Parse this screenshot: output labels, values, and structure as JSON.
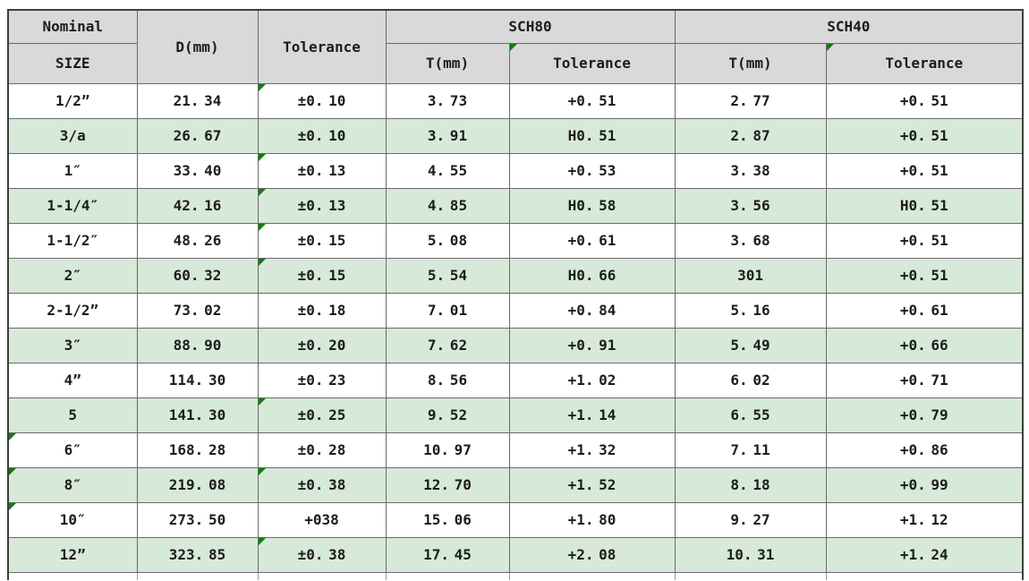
{
  "colors": {
    "header_bg": "#d9d9d9",
    "shaded_row_bg": "#d7e9d8",
    "grid_line": "#6a6a6a",
    "outer_border": "#3e3e3e",
    "flag_green": "#0f7d10"
  },
  "table": {
    "header": {
      "nominal": "Nominal",
      "size": "SIZE",
      "d_mm": "D(mm)",
      "d_tolerance": "Tolerance",
      "sch80": "SCH80",
      "sch40": "SCH40",
      "sch80_t": "T(mm)",
      "sch80_tolerance": "Tolerance",
      "sch40_t": "T(mm)",
      "sch40_tolerance": "Tolerance"
    },
    "columns": [
      "Nominal SIZE",
      "D(mm)",
      "Tolerance",
      "SCH80 T(mm)",
      "SCH80 Tolerance",
      "SCH40 T(mm)",
      "SCH40 Tolerance"
    ],
    "rows": [
      {
        "size": "1/2”",
        "d": "21.34",
        "d_tol": "±0.10",
        "sch80_t": "3.73",
        "sch80_tol": "+0.51",
        "sch40_t": "2.77",
        "sch40_tol": "+0.51",
        "shaded": false,
        "markers": [
          "d_tol"
        ]
      },
      {
        "size": "3/a",
        "d": "26.67",
        "d_tol": "±0.10",
        "sch80_t": "3.91",
        "sch80_tol": "H0.51",
        "sch40_t": "2.87",
        "sch40_tol": "+0.51",
        "shaded": true,
        "markers": []
      },
      {
        "size": "1″",
        "d": "33.40",
        "d_tol": "±0.13",
        "sch80_t": "4.55",
        "sch80_tol": "+0.53",
        "sch40_t": "3.38",
        "sch40_tol": "+0.51",
        "shaded": false,
        "markers": [
          "d_tol"
        ]
      },
      {
        "size": "1-1/4″",
        "d": "42.16",
        "d_tol": "±0.13",
        "sch80_t": "4.85",
        "sch80_tol": "H0.58",
        "sch40_t": "3.56",
        "sch40_tol": "H0.51",
        "shaded": true,
        "markers": [
          "d_tol"
        ]
      },
      {
        "size": "1-1/2″",
        "d": "48.26",
        "d_tol": "±0.15",
        "sch80_t": "5.08",
        "sch80_tol": "+0.61",
        "sch40_t": "3.68",
        "sch40_tol": "+0.51",
        "shaded": false,
        "markers": [
          "d_tol"
        ]
      },
      {
        "size": "2″",
        "d": "60.32",
        "d_tol": "±0.15",
        "sch80_t": "5.54",
        "sch80_tol": "H0.66",
        "sch40_t": "301",
        "sch40_tol": "+0.51",
        "shaded": true,
        "markers": [
          "d_tol"
        ]
      },
      {
        "size": "2-1/2”",
        "d": "73.02",
        "d_tol": "±0.18",
        "sch80_t": "7.01",
        "sch80_tol": "+0.84",
        "sch40_t": "5.16",
        "sch40_tol": "+0.61",
        "shaded": false,
        "markers": []
      },
      {
        "size": "3″",
        "d": "88.90",
        "d_tol": "±0.20",
        "sch80_t": "7.62",
        "sch80_tol": "+0.91",
        "sch40_t": "5.49",
        "sch40_tol": "+0.66",
        "shaded": true,
        "markers": []
      },
      {
        "size": "4”",
        "d": "114.30",
        "d_tol": "±0.23",
        "sch80_t": "8.56",
        "sch80_tol": "+1.02",
        "sch40_t": "6.02",
        "sch40_tol": "+0.71",
        "shaded": false,
        "markers": []
      },
      {
        "size": "5",
        "d": "141.30",
        "d_tol": "±0.25",
        "sch80_t": "9.52",
        "sch80_tol": "+1.14",
        "sch40_t": "6.55",
        "sch40_tol": "+0.79",
        "shaded": true,
        "markers": [
          "d_tol"
        ]
      },
      {
        "size": "6″",
        "d": "168.28",
        "d_tol": "±0.28",
        "sch80_t": "10.97",
        "sch80_tol": "+1.32",
        "sch40_t": "7.11",
        "sch40_tol": "+0.86",
        "shaded": false,
        "markers": [
          "size"
        ]
      },
      {
        "size": "8″",
        "d": "219.08",
        "d_tol": "±0.38",
        "sch80_t": "12.70",
        "sch80_tol": "+1.52",
        "sch40_t": "8.18",
        "sch40_tol": "+0.99",
        "shaded": true,
        "markers": [
          "size",
          "d_tol"
        ]
      },
      {
        "size": "10″",
        "d": "273.50",
        "d_tol": "+038",
        "sch80_t": "15.06",
        "sch80_tol": "+1.80",
        "sch40_t": "9.27",
        "sch40_tol": "+1.12",
        "shaded": false,
        "markers": [
          "size"
        ]
      },
      {
        "size": "12”",
        "d": "323.85",
        "d_tol": "±0.38",
        "sch80_t": "17.45",
        "sch80_tol": "+2.08",
        "sch40_t": "10.31",
        "sch40_tol": "+1.24",
        "shaded": true,
        "markers": [
          "d_tol"
        ]
      }
    ],
    "header_markers": [
      "sch80_tolerance",
      "sch40_tolerance"
    ]
  }
}
